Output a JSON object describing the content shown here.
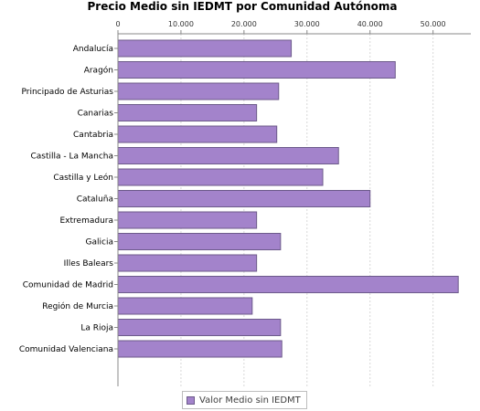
{
  "chart_data": {
    "type": "bar",
    "orientation": "horizontal",
    "title": "Precio Medio sin IEDMT por Comunidad Autónoma",
    "xlabel": "",
    "ylabel": "",
    "xlim": [
      0,
      56000
    ],
    "ticks": [
      0,
      10000,
      20000,
      30000,
      40000,
      50000
    ],
    "tick_labels": [
      "0",
      "10.000",
      "20.000",
      "30.000",
      "40.000",
      "50.000"
    ],
    "axis_position": "top",
    "grid": true,
    "legend_position": "bottom",
    "categories": [
      "Andalucía",
      "Aragón",
      "Principado de Asturias",
      "Canarias",
      "Cantabria",
      "Castilla - La Mancha",
      "Castilla y León",
      "Cataluña",
      "Extremadura",
      "Galicia",
      "Illes Balears",
      "Comunidad de Madrid",
      "Región de Murcia",
      "La Rioja",
      "Comunidad Valenciana"
    ],
    "series": [
      {
        "name": "Valor Medio sin IEDMT",
        "color": "#a383cb",
        "values": [
          27500,
          44000,
          25500,
          22000,
          25200,
          35000,
          32500,
          40000,
          22000,
          25800,
          22000,
          54000,
          21300,
          25800,
          26000
        ]
      }
    ]
  }
}
